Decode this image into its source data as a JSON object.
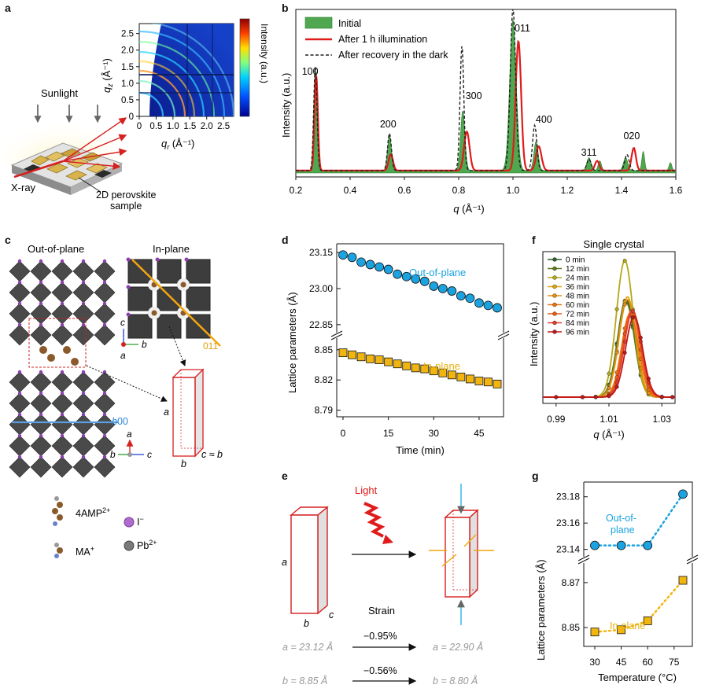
{
  "panels": {
    "a": "a",
    "b": "b",
    "c": "c",
    "d": "d",
    "e": "e",
    "f": "f",
    "g": "g"
  },
  "panel_a": {
    "sunlight_label": "Sunlight",
    "xray_label": "X-ray",
    "sample_label_1": "2D perovskite",
    "sample_label_2": "sample",
    "colorbar_label": "Intensity (a.u.)",
    "xlabel": "q",
    "xlabel_sub": "r",
    "xlabel_unit": " (Å⁻¹)",
    "ylabel": "q",
    "ylabel_sub": "z",
    "ylabel_unit": " (Å⁻¹)",
    "x_ticks": [
      "0",
      "0.5",
      "1.0",
      "1.5",
      "2.0",
      "2.5"
    ],
    "y_ticks": [
      "0",
      "0.5",
      "1.0",
      "1.5",
      "2.0",
      "2.5"
    ],
    "colors": {
      "sunglow": "#f3e38a",
      "sample_top": "#d9d9d9",
      "beam": "#d62020"
    }
  },
  "chart_data": [
    {
      "id": "b",
      "type": "line",
      "xlabel": "q (Å⁻¹)",
      "ylabel": "Intensity (a.u.)",
      "xlim": [
        0.2,
        1.6
      ],
      "x_ticks": [
        "0.2",
        "0.4",
        "0.6",
        "0.8",
        "1.0",
        "1.2",
        "1.4",
        "1.6"
      ],
      "legend": [
        "Initial",
        "After 1 h illumination",
        "After recovery in the dark"
      ],
      "peak_labels": [
        {
          "label": "100",
          "q": 0.27
        },
        {
          "label": "200",
          "q": 0.54
        },
        {
          "label": "300",
          "q": 0.815
        },
        {
          "label": "011",
          "q": 1.0
        },
        {
          "label": "400",
          "q": 1.085
        },
        {
          "label": "311",
          "q": 1.28
        },
        {
          "label": "020",
          "q": 1.42
        }
      ],
      "series": [
        {
          "name": "Initial",
          "peaks": [
            [
              0.272,
              0.62,
              0.006
            ],
            [
              0.545,
              0.22,
              0.007
            ],
            [
              0.815,
              0.37,
              0.008
            ],
            [
              1.0,
              0.93,
              0.012
            ],
            [
              1.085,
              0.18,
              0.008
            ],
            [
              1.28,
              0.08,
              0.008
            ],
            [
              1.32,
              0.06,
              0.006
            ],
            [
              1.415,
              0.08,
              0.008
            ],
            [
              1.48,
              0.12,
              0.005
            ],
            [
              1.58,
              0.05,
              0.005
            ]
          ]
        },
        {
          "name": "After 1 h illumination",
          "peaks": [
            [
              0.275,
              0.59,
              0.006
            ],
            [
              0.55,
              0.1,
              0.008
            ],
            [
              0.83,
              0.24,
              0.01
            ],
            [
              1.02,
              0.8,
              0.01
            ],
            [
              1.095,
              0.15,
              0.01
            ],
            [
              1.31,
              0.06,
              0.008
            ],
            [
              1.445,
              0.14,
              0.008
            ]
          ]
        },
        {
          "name": "After recovery in the dark",
          "peaks": [
            [
              0.272,
              0.64,
              0.006
            ],
            [
              0.545,
              0.23,
              0.007
            ],
            [
              0.812,
              0.77,
              0.007
            ],
            [
              1.0,
              1.0,
              0.01
            ],
            [
              1.08,
              0.28,
              0.008
            ],
            [
              1.28,
              0.07,
              0.008
            ],
            [
              1.42,
              0.1,
              0.008
            ]
          ]
        }
      ]
    },
    {
      "id": "d",
      "type": "scatter",
      "xlabel": "Time (min)",
      "ylabel": "Lattice parameters (Å)",
      "x_ticks": [
        "0",
        "15",
        "30",
        "45"
      ],
      "upper_ticks": [
        "23.15",
        "23.00",
        "22.85"
      ],
      "lower_ticks": [
        "8.85",
        "8.82",
        "8.79"
      ],
      "upper_label": "Out-of-plane",
      "lower_label": "In-plane",
      "x": [
        0,
        3,
        6,
        9,
        12,
        15,
        18,
        21,
        24,
        27,
        30,
        33,
        36,
        39,
        42,
        45,
        48,
        51
      ],
      "out_of_plane": [
        23.14,
        23.13,
        23.11,
        23.1,
        23.09,
        23.08,
        23.06,
        23.05,
        23.04,
        23.03,
        23.01,
        23.0,
        22.99,
        22.97,
        22.96,
        22.94,
        22.93,
        22.92
      ],
      "in_plane": [
        8.847,
        8.845,
        8.843,
        8.841,
        8.84,
        8.838,
        8.836,
        8.834,
        8.832,
        8.831,
        8.829,
        8.827,
        8.825,
        8.823,
        8.821,
        8.819,
        8.818,
        8.816
      ],
      "colors": {
        "out": "#1aa3e0",
        "in": "#f2b50f",
        "out_text": "#1aa3e0",
        "in_text": "#e8b10a"
      }
    },
    {
      "id": "f",
      "type": "line",
      "title": "Single crystal",
      "xlabel": "q (Å⁻¹)",
      "ylabel": "Intensity (a.u.)",
      "xlim": [
        0.985,
        1.035
      ],
      "x_ticks": [
        "0.99",
        "1.01",
        "1.03"
      ],
      "series": [
        {
          "name": "0 min",
          "center": 1.0165,
          "amp": 0.7,
          "color": "#2f5e2f",
          "marker": "square"
        },
        {
          "name": "12 min",
          "center": 1.0165,
          "amp": 0.68,
          "color": "#5c7a1e",
          "marker": "circle"
        },
        {
          "name": "24 min",
          "center": 1.016,
          "amp": 0.98,
          "color": "#b5a816",
          "marker": "tri-up"
        },
        {
          "name": "36 min",
          "center": 1.017,
          "amp": 0.72,
          "color": "#e0a612",
          "marker": "tri-down"
        },
        {
          "name": "48 min",
          "center": 1.017,
          "amp": 0.7,
          "color": "#e88f0f",
          "marker": "diamond"
        },
        {
          "name": "60 min",
          "center": 1.018,
          "amp": 0.6,
          "color": "#e9730f",
          "marker": "tri-left"
        },
        {
          "name": "72 min",
          "center": 1.0185,
          "amp": 0.62,
          "color": "#ea5a14",
          "marker": "tri-right"
        },
        {
          "name": "84 min",
          "center": 1.019,
          "amp": 0.62,
          "color": "#e33a2a",
          "marker": "hexagon"
        },
        {
          "name": "96 min",
          "center": 1.0195,
          "amp": 0.58,
          "color": "#c01818",
          "marker": "star"
        }
      ]
    },
    {
      "id": "g",
      "type": "scatter",
      "xlabel": "Temperature (°C)",
      "ylabel": "Lattice parameters (Å)",
      "x_ticks": [
        "30",
        "45",
        "60",
        "75"
      ],
      "upper_ticks": [
        "23.18",
        "23.16",
        "23.14"
      ],
      "lower_ticks": [
        "8.87",
        "8.85"
      ],
      "upper_label_1": "Out-of-",
      "upper_label_2": "plane",
      "lower_label": "In-plane",
      "x": [
        30,
        45,
        60,
        80
      ],
      "out_of_plane": [
        23.143,
        23.143,
        23.143,
        23.182
      ],
      "in_plane": [
        8.848,
        8.849,
        8.853,
        8.871
      ]
    }
  ],
  "panel_c": {
    "out_of_plane": "Out-of-plane",
    "in_plane": "In-plane",
    "h00": "h00",
    "h00_h": "h",
    "plane_011": "011",
    "axis_a": "a",
    "axis_b": "b",
    "axis_c": "c",
    "box_a": "a",
    "box_b": "b",
    "box_cb": "c ≈ b",
    "legend": {
      "amp": "4AMP",
      "amp_sup": "2+",
      "iodide": "I",
      "iodide_sup": "−",
      "ma": "MA",
      "ma_sup": "+",
      "pb": "Pb",
      "pb_sup": "2+"
    }
  },
  "panel_e": {
    "light": "Light",
    "strain": "Strain",
    "a": "a",
    "b": "b",
    "c": "c",
    "a_strain": "−0.95%",
    "b_strain": "−0.56%",
    "a_before": "a = 23.12 Å",
    "a_after": "a = 22.90 Å",
    "b_before": "b = 8.85 Å",
    "b_after": "b = 8.80 Å"
  }
}
